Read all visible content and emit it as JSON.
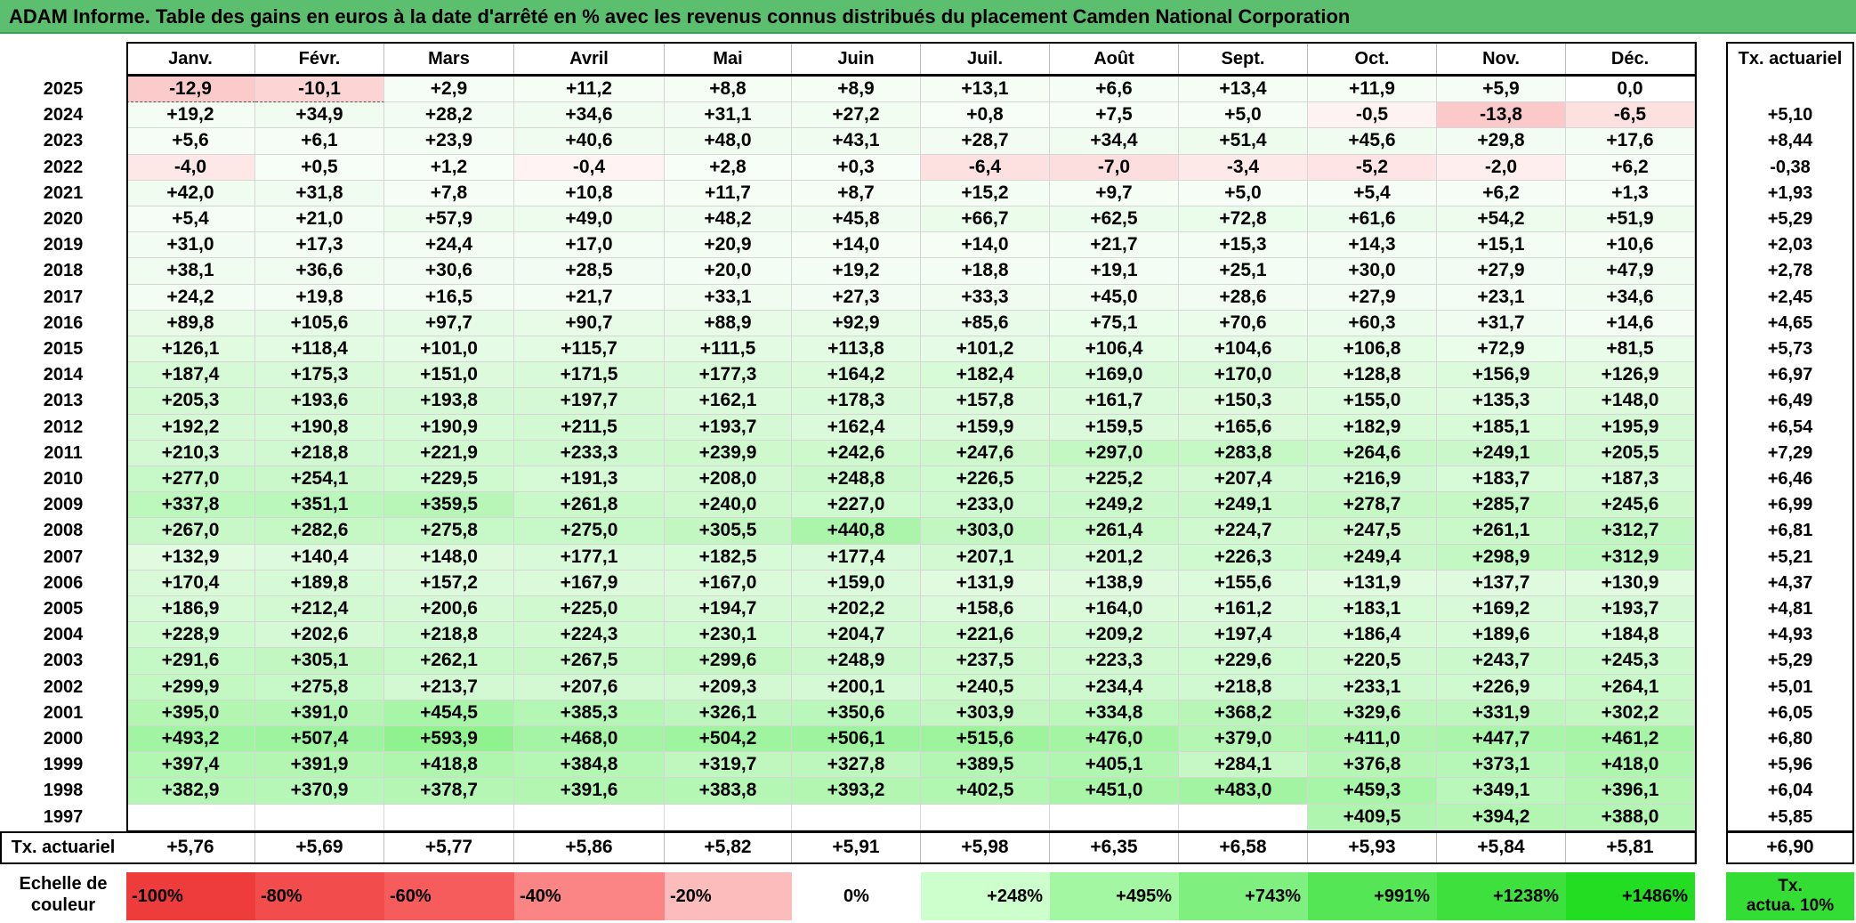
{
  "title": "ADAM Informe. Table des gains en euros à la date d'arrêté en % avec les revenus connus distribués du placement Camden National Corporation",
  "months": [
    "Janv.",
    "Févr.",
    "Mars",
    "Avril",
    "Mai",
    "Juin",
    "Juil.",
    "Août",
    "Sept.",
    "Oct.",
    "Nov.",
    "Déc."
  ],
  "annual_header": "Tx. actuariel",
  "rows": [
    {
      "year": "2025",
      "values": [
        "-12,9",
        "-10,1",
        "+2,9",
        "+11,2",
        "+8,8",
        "+8,9",
        "+13,1",
        "+6,6",
        "+13,4",
        "+11,9",
        "+5,9",
        "0,0"
      ],
      "annual": ""
    },
    {
      "year": "2024",
      "values": [
        "+19,2",
        "+34,9",
        "+28,2",
        "+34,6",
        "+31,1",
        "+27,2",
        "+0,8",
        "+7,5",
        "+5,0",
        "-0,5",
        "-13,8",
        "-6,5"
      ],
      "annual": "+5,10"
    },
    {
      "year": "2023",
      "values": [
        "+5,6",
        "+6,1",
        "+23,9",
        "+40,6",
        "+48,0",
        "+43,1",
        "+28,7",
        "+34,4",
        "+51,4",
        "+45,6",
        "+29,8",
        "+17,6"
      ],
      "annual": "+8,44"
    },
    {
      "year": "2022",
      "values": [
        "-4,0",
        "+0,5",
        "+1,2",
        "-0,4",
        "+2,8",
        "+0,3",
        "-6,4",
        "-7,0",
        "-3,4",
        "-5,2",
        "-2,0",
        "+6,2"
      ],
      "annual": "-0,38"
    },
    {
      "year": "2021",
      "values": [
        "+42,0",
        "+31,8",
        "+7,8",
        "+10,8",
        "+11,7",
        "+8,7",
        "+15,2",
        "+9,7",
        "+5,0",
        "+5,4",
        "+6,2",
        "+1,3"
      ],
      "annual": "+1,93"
    },
    {
      "year": "2020",
      "values": [
        "+5,4",
        "+21,0",
        "+57,9",
        "+49,0",
        "+48,2",
        "+45,8",
        "+66,7",
        "+62,5",
        "+72,8",
        "+61,6",
        "+54,2",
        "+51,9"
      ],
      "annual": "+5,29"
    },
    {
      "year": "2019",
      "values": [
        "+31,0",
        "+17,3",
        "+24,4",
        "+17,0",
        "+20,9",
        "+14,0",
        "+14,0",
        "+21,7",
        "+15,3",
        "+14,3",
        "+15,1",
        "+10,6"
      ],
      "annual": "+2,03"
    },
    {
      "year": "2018",
      "values": [
        "+38,1",
        "+36,6",
        "+30,6",
        "+28,5",
        "+20,0",
        "+19,2",
        "+18,8",
        "+19,1",
        "+25,1",
        "+30,0",
        "+27,9",
        "+47,9"
      ],
      "annual": "+2,78"
    },
    {
      "year": "2017",
      "values": [
        "+24,2",
        "+19,8",
        "+16,5",
        "+21,7",
        "+33,1",
        "+27,3",
        "+33,3",
        "+45,0",
        "+28,6",
        "+27,9",
        "+23,1",
        "+34,6"
      ],
      "annual": "+2,45"
    },
    {
      "year": "2016",
      "values": [
        "+89,8",
        "+105,6",
        "+97,7",
        "+90,7",
        "+88,9",
        "+92,9",
        "+85,6",
        "+75,1",
        "+70,6",
        "+60,3",
        "+31,7",
        "+14,6"
      ],
      "annual": "+4,65"
    },
    {
      "year": "2015",
      "values": [
        "+126,1",
        "+118,4",
        "+101,0",
        "+115,7",
        "+111,5",
        "+113,8",
        "+101,2",
        "+106,4",
        "+104,6",
        "+106,8",
        "+72,9",
        "+81,5"
      ],
      "annual": "+5,73"
    },
    {
      "year": "2014",
      "values": [
        "+187,4",
        "+175,3",
        "+151,0",
        "+171,5",
        "+177,3",
        "+164,2",
        "+182,4",
        "+169,0",
        "+170,0",
        "+128,8",
        "+156,9",
        "+126,9"
      ],
      "annual": "+6,97"
    },
    {
      "year": "2013",
      "values": [
        "+205,3",
        "+193,6",
        "+193,8",
        "+197,7",
        "+162,1",
        "+178,3",
        "+157,8",
        "+161,7",
        "+150,3",
        "+155,0",
        "+135,3",
        "+148,0"
      ],
      "annual": "+6,49"
    },
    {
      "year": "2012",
      "values": [
        "+192,2",
        "+190,8",
        "+190,9",
        "+211,5",
        "+193,7",
        "+162,4",
        "+159,9",
        "+159,5",
        "+165,6",
        "+182,9",
        "+185,1",
        "+195,9"
      ],
      "annual": "+6,54"
    },
    {
      "year": "2011",
      "values": [
        "+210,3",
        "+218,8",
        "+221,9",
        "+233,3",
        "+239,9",
        "+242,6",
        "+247,6",
        "+297,0",
        "+283,8",
        "+264,6",
        "+249,1",
        "+205,5"
      ],
      "annual": "+7,29"
    },
    {
      "year": "2010",
      "values": [
        "+277,0",
        "+254,1",
        "+229,5",
        "+191,3",
        "+208,0",
        "+248,8",
        "+226,5",
        "+225,2",
        "+207,4",
        "+216,9",
        "+183,7",
        "+187,3"
      ],
      "annual": "+6,46"
    },
    {
      "year": "2009",
      "values": [
        "+337,8",
        "+351,1",
        "+359,5",
        "+261,8",
        "+240,0",
        "+227,0",
        "+233,0",
        "+249,2",
        "+249,1",
        "+278,7",
        "+285,7",
        "+245,6"
      ],
      "annual": "+6,99"
    },
    {
      "year": "2008",
      "values": [
        "+267,0",
        "+282,6",
        "+275,8",
        "+275,0",
        "+305,5",
        "+440,8",
        "+303,0",
        "+261,4",
        "+224,7",
        "+247,5",
        "+261,1",
        "+312,7"
      ],
      "annual": "+6,81"
    },
    {
      "year": "2007",
      "values": [
        "+132,9",
        "+140,4",
        "+148,0",
        "+177,1",
        "+182,5",
        "+177,4",
        "+207,1",
        "+201,2",
        "+226,3",
        "+249,4",
        "+298,9",
        "+312,9"
      ],
      "annual": "+5,21"
    },
    {
      "year": "2006",
      "values": [
        "+170,4",
        "+189,8",
        "+157,2",
        "+167,9",
        "+167,0",
        "+159,0",
        "+131,9",
        "+138,9",
        "+155,6",
        "+131,9",
        "+137,7",
        "+130,9"
      ],
      "annual": "+4,37"
    },
    {
      "year": "2005",
      "values": [
        "+186,9",
        "+212,4",
        "+200,6",
        "+225,0",
        "+194,7",
        "+202,2",
        "+158,6",
        "+164,0",
        "+161,2",
        "+183,1",
        "+169,2",
        "+193,7"
      ],
      "annual": "+4,81"
    },
    {
      "year": "2004",
      "values": [
        "+228,9",
        "+202,6",
        "+218,8",
        "+224,3",
        "+230,1",
        "+204,7",
        "+221,6",
        "+209,2",
        "+197,4",
        "+186,4",
        "+189,6",
        "+184,8"
      ],
      "annual": "+4,93"
    },
    {
      "year": "2003",
      "values": [
        "+291,6",
        "+305,1",
        "+262,1",
        "+267,5",
        "+299,6",
        "+248,9",
        "+237,5",
        "+223,3",
        "+229,6",
        "+220,5",
        "+243,7",
        "+245,3"
      ],
      "annual": "+5,29"
    },
    {
      "year": "2002",
      "values": [
        "+299,9",
        "+275,8",
        "+213,7",
        "+207,6",
        "+209,3",
        "+200,1",
        "+240,5",
        "+234,4",
        "+218,8",
        "+233,1",
        "+226,9",
        "+264,1"
      ],
      "annual": "+5,01"
    },
    {
      "year": "2001",
      "values": [
        "+395,0",
        "+391,0",
        "+454,5",
        "+385,3",
        "+326,1",
        "+350,6",
        "+303,9",
        "+334,8",
        "+368,2",
        "+329,6",
        "+331,9",
        "+302,2"
      ],
      "annual": "+6,05"
    },
    {
      "year": "2000",
      "values": [
        "+493,2",
        "+507,4",
        "+593,9",
        "+468,0",
        "+504,2",
        "+506,1",
        "+515,6",
        "+476,0",
        "+379,0",
        "+411,0",
        "+447,7",
        "+461,2"
      ],
      "annual": "+6,80"
    },
    {
      "year": "1999",
      "values": [
        "+397,4",
        "+391,9",
        "+418,8",
        "+384,8",
        "+319,7",
        "+327,8",
        "+389,5",
        "+405,1",
        "+284,1",
        "+376,8",
        "+373,1",
        "+418,0"
      ],
      "annual": "+5,96"
    },
    {
      "year": "1998",
      "values": [
        "+382,9",
        "+370,9",
        "+378,7",
        "+391,6",
        "+383,8",
        "+393,2",
        "+402,5",
        "+451,0",
        "+483,0",
        "+459,3",
        "+349,1",
        "+396,1"
      ],
      "annual": "+6,04"
    },
    {
      "year": "1997",
      "values": [
        "",
        "",
        "",
        "",
        "",
        "",
        "",
        "",
        "",
        "+409,5",
        "+394,2",
        "+388,0"
      ],
      "annual": "+5,85"
    }
  ],
  "footer": {
    "label": "Tx. actuariel",
    "values": [
      "+5,76",
      "+5,69",
      "+5,77",
      "+5,86",
      "+5,82",
      "+5,91",
      "+5,98",
      "+6,35",
      "+6,58",
      "+5,93",
      "+5,84",
      "+5,81"
    ],
    "total": "+6,90"
  },
  "scale": {
    "label": "Echelle de\ncouleur",
    "cells": [
      "-100%",
      "-80%",
      "-60%",
      "-40%",
      "-20%",
      "0%",
      "+248%",
      "+495%",
      "+743%",
      "+991%",
      "+1238%",
      "+1486%"
    ],
    "colors": [
      "#ee3b3b",
      "#f34c4c",
      "#f75c5c",
      "#fb8585",
      "#fdbcbc",
      "#ffffff",
      "#ccffcc",
      "#a3f7a3",
      "#7ff07f",
      "#55e655",
      "#3ee03e",
      "#22dd22"
    ],
    "right_label": "Tx.\nactua. 10%",
    "right_color": "#33dd33"
  },
  "colors": {
    "title_bar": "#5cbf6f",
    "negative_base": "#fdd5d5",
    "positive_base": "#e2f9e2",
    "positive_strong": "#8ef28e"
  }
}
